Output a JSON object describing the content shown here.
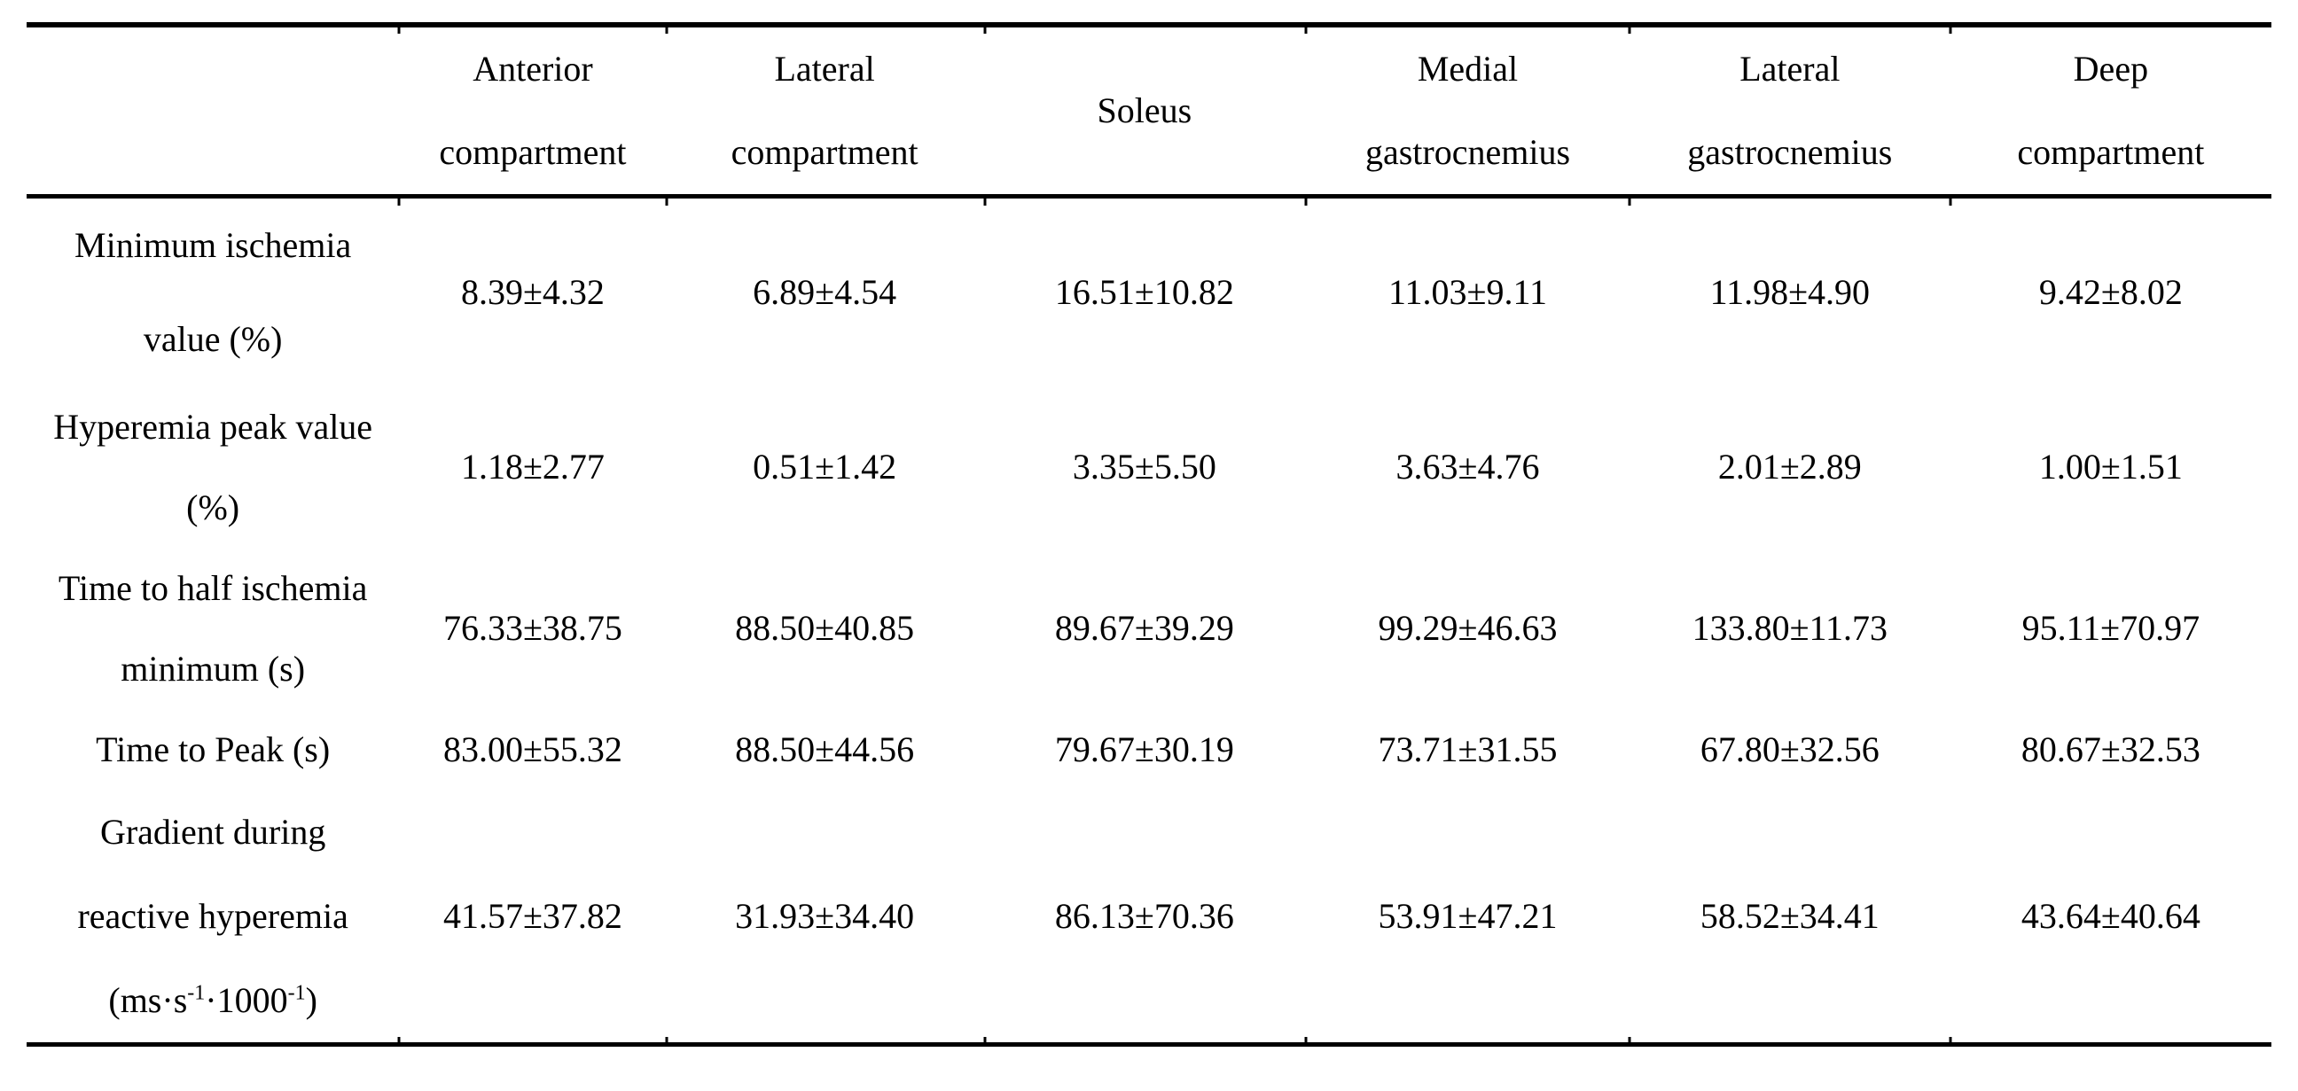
{
  "table": {
    "headers": [
      [
        ""
      ],
      [
        "Anterior",
        "compartment"
      ],
      [
        "Lateral",
        "compartment"
      ],
      [
        "Soleus"
      ],
      [
        "Medial",
        "gastrocnemius"
      ],
      [
        "Lateral",
        "gastrocnemius"
      ],
      [
        "Deep",
        "compartment"
      ]
    ],
    "rows": [
      {
        "label": [
          "Minimum ischemia",
          "value (%)"
        ],
        "values": [
          "8.39±4.32",
          "6.89±4.54",
          "16.51±10.82",
          "11.03±9.11",
          "11.98±4.90",
          "9.42±8.02"
        ]
      },
      {
        "label": [
          "Hyperemia peak value",
          "(%)"
        ],
        "values": [
          "1.18±2.77",
          "0.51±1.42",
          "3.35±5.50",
          "3.63±4.76",
          "2.01±2.89",
          "1.00±1.51"
        ]
      },
      {
        "label": [
          "Time to half ischemia",
          "minimum (s)"
        ],
        "values": [
          "76.33±38.75",
          "88.50±40.85",
          "89.67±39.29",
          "99.29±46.63",
          "133.80±11.73",
          "95.11±70.97"
        ]
      },
      {
        "label": [
          "Time to Peak (s)"
        ],
        "values": [
          "83.00±55.32",
          "88.50±44.56",
          "79.67±30.19",
          "73.71±31.55",
          "67.80±32.56",
          "80.67±32.53"
        ]
      },
      {
        "label": [
          "Gradient during",
          "reactive hyperemia"
        ],
        "unit_parts": [
          "(ms·s",
          "-1",
          "·1000",
          "-1",
          ")"
        ],
        "values": [
          "41.57±37.82",
          "31.93±34.40",
          "86.13±70.36",
          "53.91±47.21",
          "58.52±34.41",
          "43.64±40.64"
        ]
      }
    ]
  }
}
